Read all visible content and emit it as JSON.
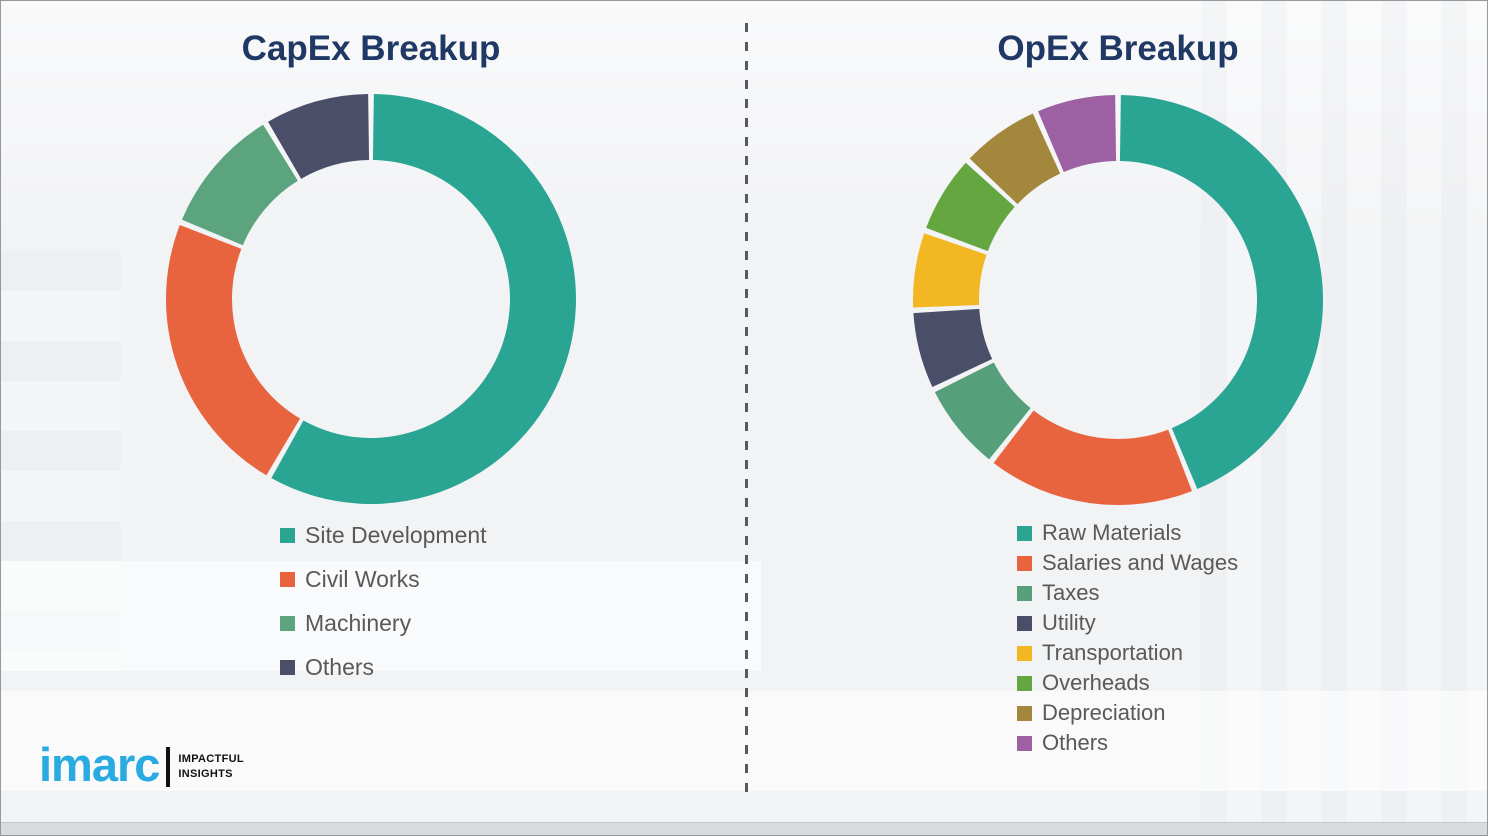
{
  "theme": {
    "background_color": "#F2F3F5",
    "title_color": "#1F3864",
    "legend_text_color": "#595959",
    "divider_color": "#57595C",
    "logo_blue": "#29ABE2",
    "logo_dark": "#111111"
  },
  "branding": {
    "logo_text": "imarc",
    "tagline_line1": "IMPACTFUL",
    "tagline_line2": "INSIGHTS"
  },
  "chart_data": [
    {
      "type": "pie",
      "subtype": "donut",
      "title": "CapEx Breakup",
      "start_angle_deg": 0,
      "direction": "clockwise",
      "inner_radius_ratio": 0.68,
      "legend_position": "bottom-left",
      "categories": [
        "Site Development",
        "Civil Works",
        "Machinery",
        "Others"
      ],
      "values": [
        58.3,
        22.8,
        10.3,
        8.6
      ],
      "unit": "%",
      "colors": [
        "#2AA493",
        "#E8643F",
        "#5CA47D",
        "#4A4E69"
      ]
    },
    {
      "type": "pie",
      "subtype": "donut",
      "title": "OpEx Breakup",
      "start_angle_deg": 0,
      "direction": "clockwise",
      "inner_radius_ratio": 0.68,
      "legend_position": "bottom-left",
      "categories": [
        "Raw Materials",
        "Salaries and Wages",
        "Taxes",
        "Utility",
        "Transportation",
        "Overheads",
        "Depreciation",
        "Others"
      ],
      "values": [
        43.9,
        16.7,
        7.2,
        6.4,
        6.3,
        6.4,
        6.5,
        6.6
      ],
      "unit": "%",
      "colors": [
        "#2AA493",
        "#E8643F",
        "#55A07B",
        "#4A4E69",
        "#F2B722",
        "#64A741",
        "#A3873C",
        "#9D61A3"
      ]
    }
  ]
}
